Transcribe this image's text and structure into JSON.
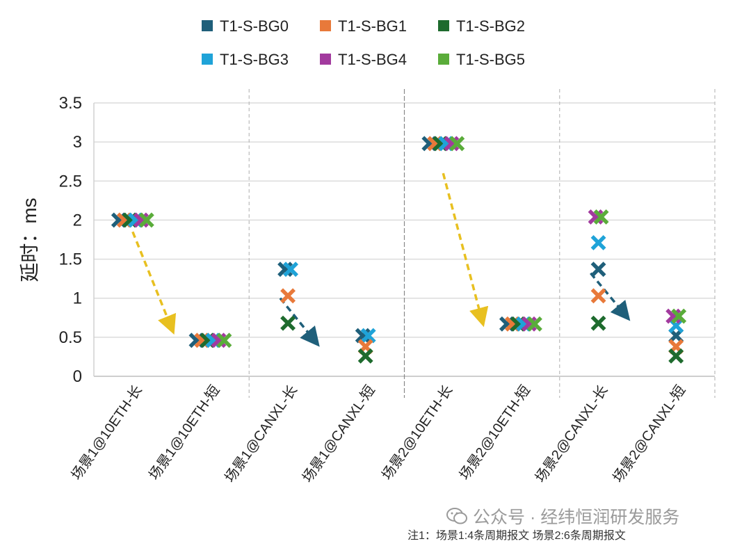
{
  "chart_data": {
    "type": "scatter",
    "title": "",
    "xlabel": "",
    "ylabel": "延时：ms",
    "ylim": [
      0,
      3.5
    ],
    "yticks": [
      0,
      0.5,
      1,
      1.5,
      2,
      2.5,
      3,
      3.5
    ],
    "ytick_labels": [
      "0",
      "0.5",
      "1",
      "1.5",
      "2",
      "2.5",
      "3",
      "3.5"
    ],
    "grid": true,
    "legend_position": "top",
    "marker": "x",
    "categories": [
      "场景1@10ETH-长",
      "场景1@10ETH-短",
      "场景1@CANXL-长",
      "场景1@CANXL-短",
      "场景2@10ETH-长",
      "场景2@10ETH-短",
      "场景2@CANXL-长",
      "场景2@CANXL-短"
    ],
    "series": [
      {
        "name": "T1-S-BG0",
        "color": "#1f5f7a",
        "values": [
          2.0,
          0.46,
          1.37,
          0.52,
          2.98,
          0.67,
          1.37,
          0.52
        ]
      },
      {
        "name": "T1-S-BG1",
        "color": "#e8793a",
        "values": [
          2.0,
          0.46,
          1.03,
          0.38,
          2.98,
          0.67,
          1.03,
          0.38
        ]
      },
      {
        "name": "T1-S-BG2",
        "color": "#1e6b2e",
        "values": [
          2.0,
          0.46,
          0.68,
          0.26,
          2.98,
          0.67,
          0.68,
          0.26
        ]
      },
      {
        "name": "T1-S-BG3",
        "color": "#1fa3d8",
        "values": [
          2.0,
          0.46,
          1.37,
          0.52,
          2.98,
          0.67,
          1.71,
          0.65
        ]
      },
      {
        "name": "T1-S-BG4",
        "color": "#a23a9e",
        "values": [
          2.0,
          0.46,
          null,
          null,
          2.98,
          0.67,
          2.04,
          0.77
        ]
      },
      {
        "name": "T1-S-BG5",
        "color": "#5aac3a",
        "values": [
          2.0,
          0.46,
          null,
          null,
          2.98,
          0.67,
          2.04,
          0.77
        ]
      }
    ],
    "annotations": [
      {
        "type": "arrow",
        "color": "#e8c020",
        "from": [
          0.5,
          1.85
        ],
        "to": [
          1.0,
          0.62
        ]
      },
      {
        "type": "arrow",
        "color": "#1f5f7a",
        "from": [
          2.4,
          1.0
        ],
        "to": [
          2.85,
          0.45
        ]
      },
      {
        "type": "arrow",
        "color": "#e8c020",
        "from": [
          4.5,
          2.6
        ],
        "to": [
          5.0,
          0.72
        ]
      },
      {
        "type": "arrow",
        "color": "#1f5f7a",
        "from": [
          6.4,
          1.32
        ],
        "to": [
          6.85,
          0.78
        ]
      }
    ],
    "separators": [
      {
        "after_category": 1,
        "style": "dashed"
      },
      {
        "after_category": 3,
        "style": "solid"
      },
      {
        "after_category": 5,
        "style": "dashed"
      }
    ]
  },
  "note": "注1：场景1:4条周期报文 场景2:6条周期报文",
  "watermark": "公众号 · 经纬恒润研发服务"
}
